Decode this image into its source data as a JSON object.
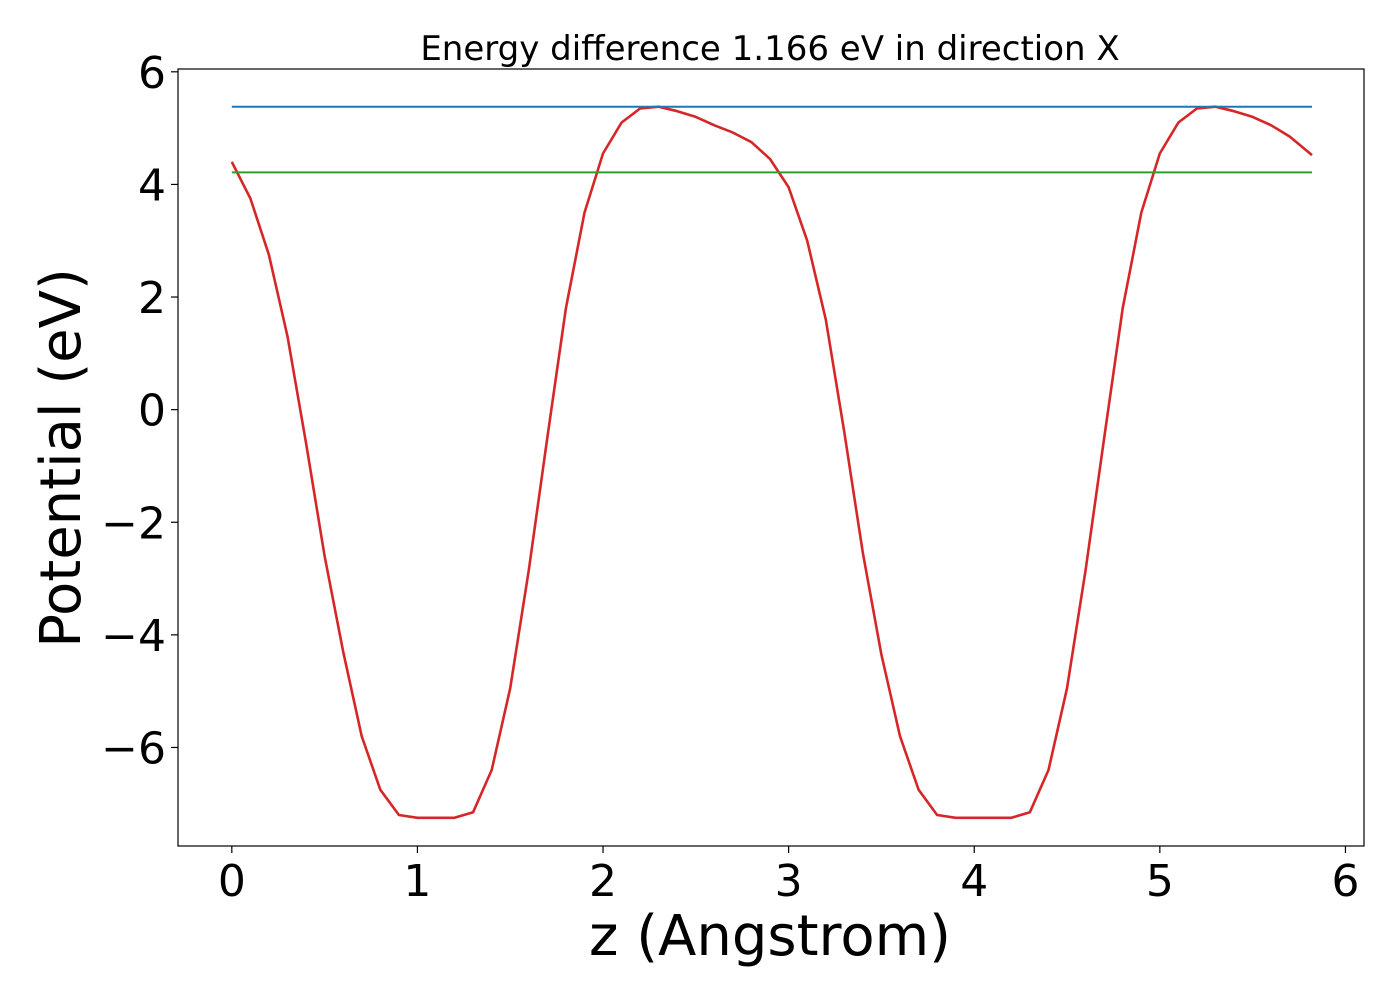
{
  "chart_data": {
    "type": "line",
    "title": "Energy difference 1.166 eV in direction X",
    "xlabel": "z (Angstrom)",
    "ylabel": "Potential (eV)",
    "xlim": [
      -0.29,
      6.1
    ],
    "ylim": [
      -7.75,
      6.05
    ],
    "xticks": [
      0,
      1,
      2,
      3,
      4,
      5,
      6
    ],
    "yticks": [
      -6,
      -4,
      -2,
      0,
      2,
      4,
      6
    ],
    "grid": false,
    "legend": "none",
    "series": [
      {
        "color": "#d62728",
        "x": [
          0.0,
          0.1,
          0.2,
          0.3,
          0.4,
          0.5,
          0.6,
          0.7,
          0.8,
          0.9,
          1.0,
          1.1,
          1.2,
          1.3,
          1.4,
          1.5,
          1.6,
          1.7,
          1.8,
          1.9,
          2.0,
          2.1,
          2.2,
          2.3,
          2.4,
          2.5,
          2.6,
          2.7,
          2.8,
          2.9,
          3.0,
          3.1,
          3.2,
          3.3,
          3.4,
          3.5,
          3.6,
          3.7,
          3.8,
          3.9,
          4.0,
          4.1,
          4.2,
          4.3,
          4.4,
          4.5,
          4.6,
          4.7,
          4.8,
          4.9,
          5.0,
          5.1,
          5.2,
          5.3,
          5.4,
          5.5,
          5.6,
          5.7,
          5.82
        ],
        "y": [
          4.4,
          3.75,
          2.75,
          1.3,
          -0.6,
          -2.6,
          -4.3,
          -5.8,
          -6.75,
          -7.2,
          -7.25,
          -7.25,
          -7.25,
          -7.15,
          -6.4,
          -4.95,
          -2.85,
          -0.5,
          1.8,
          3.5,
          4.55,
          5.1,
          5.35,
          5.38,
          5.3,
          5.2,
          5.05,
          4.92,
          4.75,
          4.45,
          3.95,
          3.0,
          1.6,
          -0.4,
          -2.55,
          -4.35,
          -5.8,
          -6.75,
          -7.2,
          -7.25,
          -7.25,
          -7.25,
          -7.25,
          -7.15,
          -6.4,
          -4.95,
          -2.85,
          -0.5,
          1.8,
          3.5,
          4.55,
          5.1,
          5.35,
          5.38,
          5.3,
          5.2,
          5.05,
          4.85,
          4.52
        ]
      },
      {
        "color": "#1f77b4",
        "x": [
          0.0,
          5.82
        ],
        "y": [
          5.38,
          5.38
        ]
      },
      {
        "color": "#2ca02c",
        "x": [
          0.0,
          5.82
        ],
        "y": [
          4.214,
          4.214
        ]
      }
    ]
  }
}
